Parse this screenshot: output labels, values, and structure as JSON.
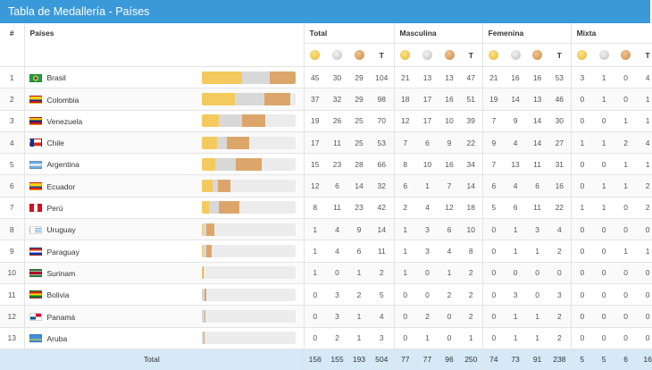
{
  "title": "Tabla de Medallería - Países",
  "headers": {
    "rank": "#",
    "country": "Países",
    "groups": [
      "Total",
      "Masculina",
      "Femenina",
      "Mixta"
    ],
    "total_col": "T"
  },
  "colors": {
    "header": "#3a9ad9",
    "gold": "#f4c95d",
    "silver": "#d8d8d8",
    "bronze": "#dca66b",
    "footer": "#d5e9f7"
  },
  "rows": [
    {
      "rank": "1",
      "country": "Brasil",
      "flag": "brazil",
      "total": [
        "45",
        "30",
        "29",
        "104"
      ],
      "men": [
        "21",
        "13",
        "13",
        "47"
      ],
      "women": [
        "21",
        "16",
        "16",
        "53"
      ],
      "mixed": [
        "3",
        "1",
        "0",
        "4"
      ]
    },
    {
      "rank": "2",
      "country": "Colombia",
      "flag": "colombia",
      "total": [
        "37",
        "32",
        "29",
        "98"
      ],
      "men": [
        "18",
        "17",
        "16",
        "51"
      ],
      "women": [
        "19",
        "14",
        "13",
        "46"
      ],
      "mixed": [
        "0",
        "1",
        "0",
        "1"
      ]
    },
    {
      "rank": "3",
      "country": "Venezuela",
      "flag": "venezuela",
      "total": [
        "19",
        "26",
        "25",
        "70"
      ],
      "men": [
        "12",
        "17",
        "10",
        "39"
      ],
      "women": [
        "7",
        "9",
        "14",
        "30"
      ],
      "mixed": [
        "0",
        "0",
        "1",
        "1"
      ]
    },
    {
      "rank": "4",
      "country": "Chile",
      "flag": "chile",
      "total": [
        "17",
        "11",
        "25",
        "53"
      ],
      "men": [
        "7",
        "6",
        "9",
        "22"
      ],
      "women": [
        "9",
        "4",
        "14",
        "27"
      ],
      "mixed": [
        "1",
        "1",
        "2",
        "4"
      ]
    },
    {
      "rank": "5",
      "country": "Argentina",
      "flag": "argentina",
      "total": [
        "15",
        "23",
        "28",
        "66"
      ],
      "men": [
        "8",
        "10",
        "16",
        "34"
      ],
      "women": [
        "7",
        "13",
        "11",
        "31"
      ],
      "mixed": [
        "0",
        "0",
        "1",
        "1"
      ]
    },
    {
      "rank": "6",
      "country": "Ecuador",
      "flag": "ecuador",
      "total": [
        "12",
        "6",
        "14",
        "32"
      ],
      "men": [
        "6",
        "1",
        "7",
        "14"
      ],
      "women": [
        "6",
        "4",
        "6",
        "16"
      ],
      "mixed": [
        "0",
        "1",
        "1",
        "2"
      ]
    },
    {
      "rank": "7",
      "country": "Perú",
      "flag": "peru",
      "total": [
        "8",
        "11",
        "23",
        "42"
      ],
      "men": [
        "2",
        "4",
        "12",
        "18"
      ],
      "women": [
        "5",
        "6",
        "11",
        "22"
      ],
      "mixed": [
        "1",
        "1",
        "0",
        "2"
      ]
    },
    {
      "rank": "8",
      "country": "Uruguay",
      "flag": "uruguay",
      "total": [
        "1",
        "4",
        "9",
        "14"
      ],
      "men": [
        "1",
        "3",
        "6",
        "10"
      ],
      "women": [
        "0",
        "1",
        "3",
        "4"
      ],
      "mixed": [
        "0",
        "0",
        "0",
        "0"
      ]
    },
    {
      "rank": "9",
      "country": "Paraguay",
      "flag": "paraguay",
      "total": [
        "1",
        "4",
        "6",
        "11"
      ],
      "men": [
        "1",
        "3",
        "4",
        "8"
      ],
      "women": [
        "0",
        "1",
        "1",
        "2"
      ],
      "mixed": [
        "0",
        "0",
        "1",
        "1"
      ]
    },
    {
      "rank": "10",
      "country": "Surinam",
      "flag": "suriname",
      "total": [
        "1",
        "0",
        "1",
        "2"
      ],
      "men": [
        "1",
        "0",
        "1",
        "2"
      ],
      "women": [
        "0",
        "0",
        "0",
        "0"
      ],
      "mixed": [
        "0",
        "0",
        "0",
        "0"
      ]
    },
    {
      "rank": "11",
      "country": "Bolivia",
      "flag": "bolivia",
      "total": [
        "0",
        "3",
        "2",
        "5"
      ],
      "men": [
        "0",
        "0",
        "2",
        "2"
      ],
      "women": [
        "0",
        "3",
        "0",
        "3"
      ],
      "mixed": [
        "0",
        "0",
        "0",
        "0"
      ]
    },
    {
      "rank": "12",
      "country": "Panamá",
      "flag": "panama",
      "total": [
        "0",
        "3",
        "1",
        "4"
      ],
      "men": [
        "0",
        "2",
        "0",
        "2"
      ],
      "women": [
        "0",
        "1",
        "1",
        "2"
      ],
      "mixed": [
        "0",
        "0",
        "0",
        "0"
      ]
    },
    {
      "rank": "13",
      "country": "Aruba",
      "flag": "aruba",
      "total": [
        "0",
        "2",
        "1",
        "3"
      ],
      "men": [
        "0",
        "1",
        "0",
        "1"
      ],
      "women": [
        "0",
        "1",
        "1",
        "2"
      ],
      "mixed": [
        "0",
        "0",
        "0",
        "0"
      ]
    }
  ],
  "footer": {
    "label": "Total",
    "total": [
      "156",
      "155",
      "193",
      "504"
    ],
    "men": [
      "77",
      "77",
      "96",
      "250"
    ],
    "women": [
      "74",
      "73",
      "91",
      "238"
    ],
    "mixed": [
      "5",
      "5",
      "6",
      "16"
    ]
  }
}
